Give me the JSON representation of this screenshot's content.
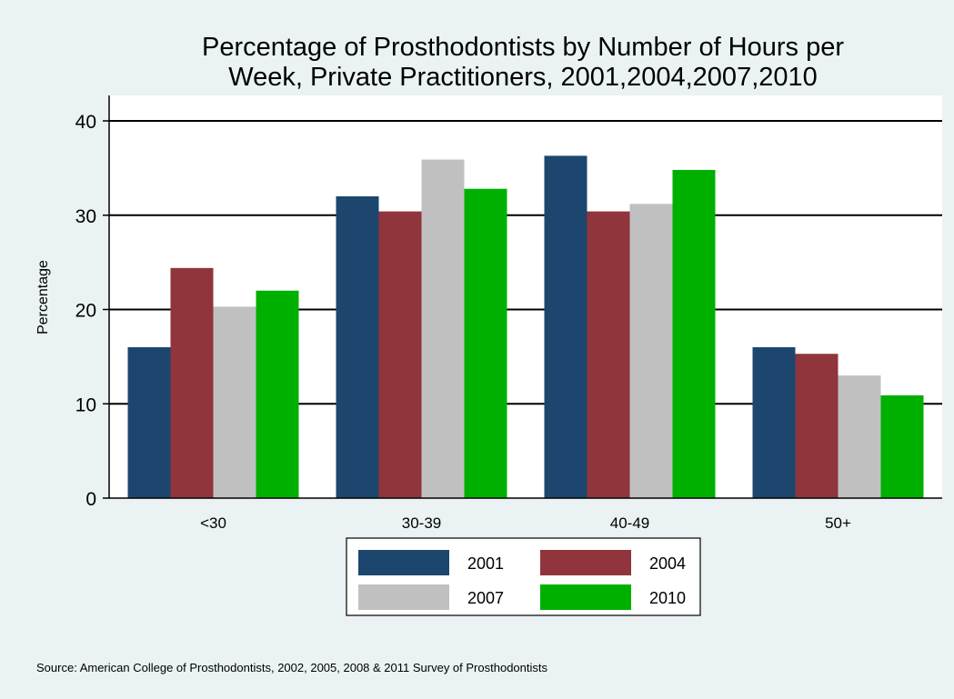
{
  "chart_data": {
    "type": "bar",
    "title": [
      "Percentage of Prosthodontists by Number of Hours per",
      "Week, Private Practitioners, 2001,2004,2007,2010"
    ],
    "xlabel": "",
    "ylabel": "Percentage",
    "ylim": [
      0,
      40
    ],
    "yticks": [
      0,
      10,
      20,
      30,
      40
    ],
    "grid": true,
    "categories": [
      "<30",
      "30-39",
      "40-49",
      "50+"
    ],
    "series": [
      {
        "name": "2001",
        "color": "#1d466f",
        "values": [
          16.0,
          32.0,
          36.3,
          16.0
        ]
      },
      {
        "name": "2004",
        "color": "#90353b",
        "values": [
          24.4,
          30.4,
          30.4,
          15.3
        ]
      },
      {
        "name": "2007",
        "color": "#c0c0c0",
        "values": [
          20.3,
          35.9,
          31.2,
          13.0
        ]
      },
      {
        "name": "2010",
        "color": "#00b000",
        "values": [
          22.0,
          32.8,
          34.8,
          10.9
        ]
      }
    ],
    "legend_position": "bottom",
    "note": "Source: American College of Prosthodontists, 2002, 2005, 2008 & 2011 Survey of Prosthodontists"
  }
}
